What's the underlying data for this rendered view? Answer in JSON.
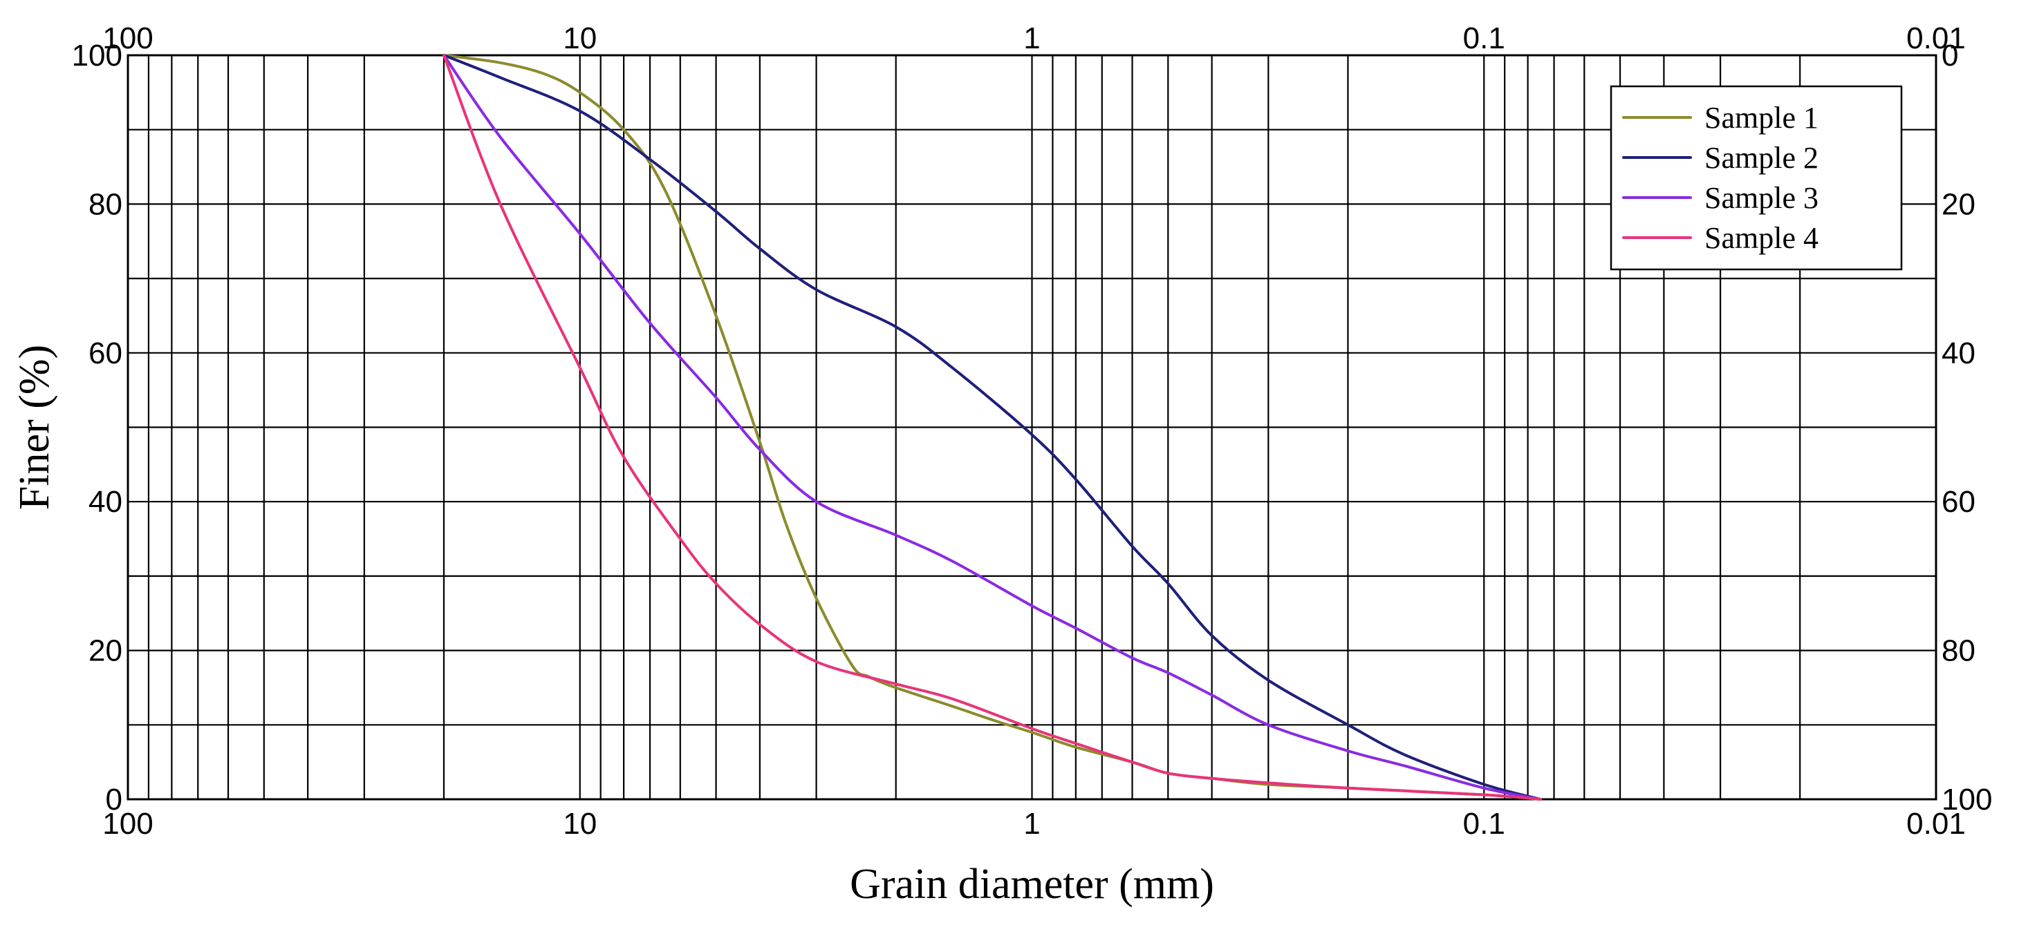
{
  "chart_data": {
    "type": "line",
    "x_scale": "log",
    "x_reversed": true,
    "xlim": [
      100,
      0.01
    ],
    "ylim": [
      0,
      100
    ],
    "y2lim": [
      100,
      0
    ],
    "xlabel": "Grain diameter (mm)",
    "ylabel": "Finer (%)",
    "x_ticks": [
      100,
      10,
      1,
      0.1,
      0.01
    ],
    "x_tick_labels": [
      "100",
      "10",
      "1",
      "0.1",
      "0.01"
    ],
    "y_ticks": [
      0,
      20,
      40,
      60,
      80,
      100
    ],
    "y_tick_labels": [
      "0",
      "20",
      "40",
      "60",
      "80",
      "100"
    ],
    "y2_ticks": [
      0,
      20,
      40,
      60,
      80,
      100
    ],
    "y2_tick_labels": [
      "0",
      "20",
      "40",
      "60",
      "80",
      "100"
    ],
    "grid": true,
    "y_minor_step": 10,
    "legend_position": "top-right",
    "series": [
      {
        "name": "Sample 1",
        "color": "#8B8B2E",
        "x": [
          20,
          15,
          12,
          10,
          8,
          6.5,
          5,
          4,
          3.5,
          3,
          2.5,
          2.3,
          2.0,
          1.5,
          1.2,
          1.0,
          0.8,
          0.6,
          0.5,
          0.4,
          0.3,
          0.2,
          0.1,
          0.075
        ],
        "y": [
          100,
          99,
          97.5,
          95,
          90,
          82,
          65,
          48,
          37,
          27,
          18,
          16.5,
          15,
          12.5,
          10.5,
          9,
          7,
          5,
          3.5,
          2.8,
          2,
          1.5,
          0.6,
          0
        ]
      },
      {
        "name": "Sample 2",
        "color": "#1F1F7A",
        "x": [
          20,
          15,
          10,
          7,
          5,
          4,
          3,
          2,
          1.5,
          1.0,
          0.8,
          0.6,
          0.5,
          0.4,
          0.3,
          0.2,
          0.15,
          0.1,
          0.075
        ],
        "y": [
          100,
          97,
          92.5,
          86,
          79,
          74,
          68.5,
          63.5,
          58,
          49,
          43,
          34,
          29,
          22,
          16,
          10,
          6,
          2,
          0
        ]
      },
      {
        "name": "Sample 3",
        "color": "#8A2BE2",
        "x": [
          20,
          15,
          10,
          7,
          5,
          4,
          3,
          2,
          1.5,
          1.0,
          0.8,
          0.6,
          0.5,
          0.4,
          0.3,
          0.2,
          0.15,
          0.1,
          0.075
        ],
        "y": [
          100,
          89,
          76,
          64,
          54,
          47,
          40,
          35.5,
          32,
          26,
          23,
          19,
          17,
          14,
          10,
          6.5,
          4.5,
          1.5,
          0
        ]
      },
      {
        "name": "Sample 4",
        "color": "#E8347A",
        "x": [
          20,
          15,
          10,
          8,
          6,
          5,
          4,
          3,
          2,
          1.5,
          1.0,
          0.8,
          0.6,
          0.5,
          0.4,
          0.3,
          0.2,
          0.1,
          0.075
        ],
        "y": [
          100,
          80,
          58,
          46,
          35,
          29,
          23.5,
          18.5,
          15.5,
          13.5,
          9.5,
          7.5,
          5,
          3.5,
          2.8,
          2.2,
          1.5,
          0.6,
          0
        ]
      }
    ]
  }
}
